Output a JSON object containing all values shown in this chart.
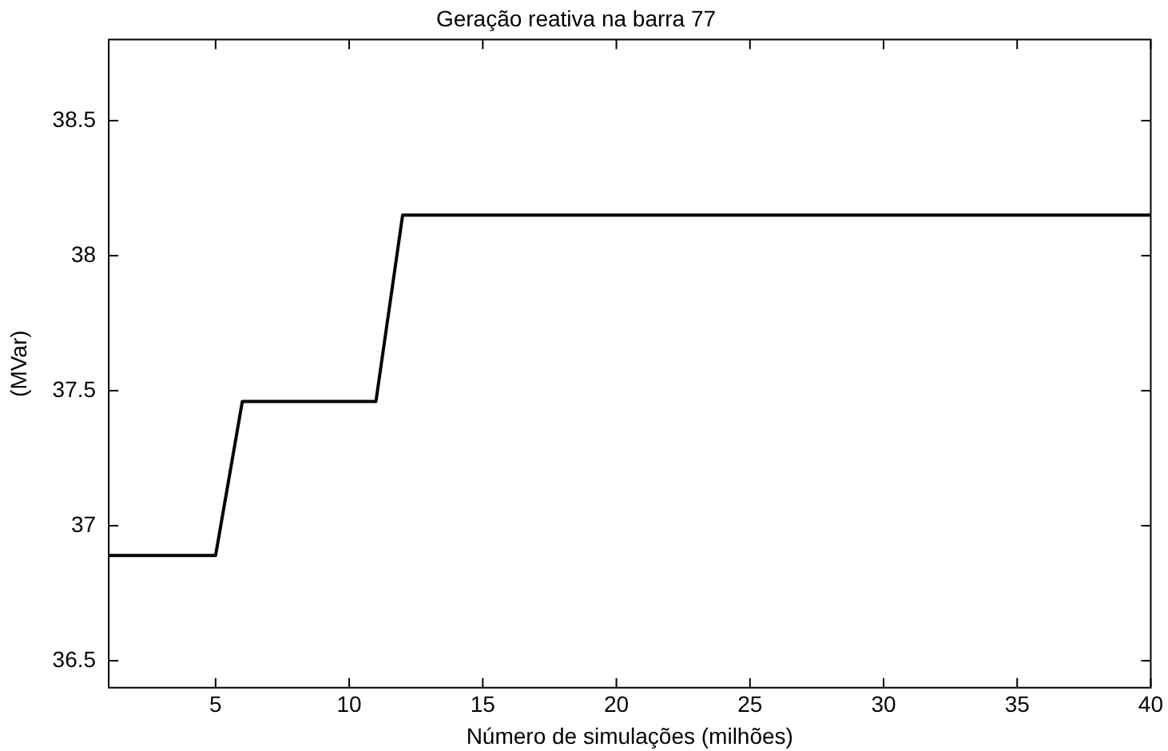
{
  "chart_data": {
    "type": "line",
    "title": "Geração reativa na barra 77",
    "xlabel": "Número de simulações (milhões)",
    "ylabel": "(MVar)",
    "x": [
      1,
      5,
      6,
      11,
      12,
      40
    ],
    "series": [
      {
        "color": "#000000",
        "values": [
          36.89,
          36.89,
          37.46,
          37.46,
          38.15,
          38.15
        ]
      }
    ],
    "xlim": [
      1,
      40
    ],
    "xticks": [
      5,
      10,
      15,
      20,
      25,
      30,
      35,
      40
    ],
    "ylim": [
      36.4,
      38.8
    ],
    "yticks": [
      36.5,
      37,
      37.5,
      38,
      38.5
    ],
    "grid": false,
    "legend": false,
    "marker": "none",
    "line_style": "solid"
  }
}
